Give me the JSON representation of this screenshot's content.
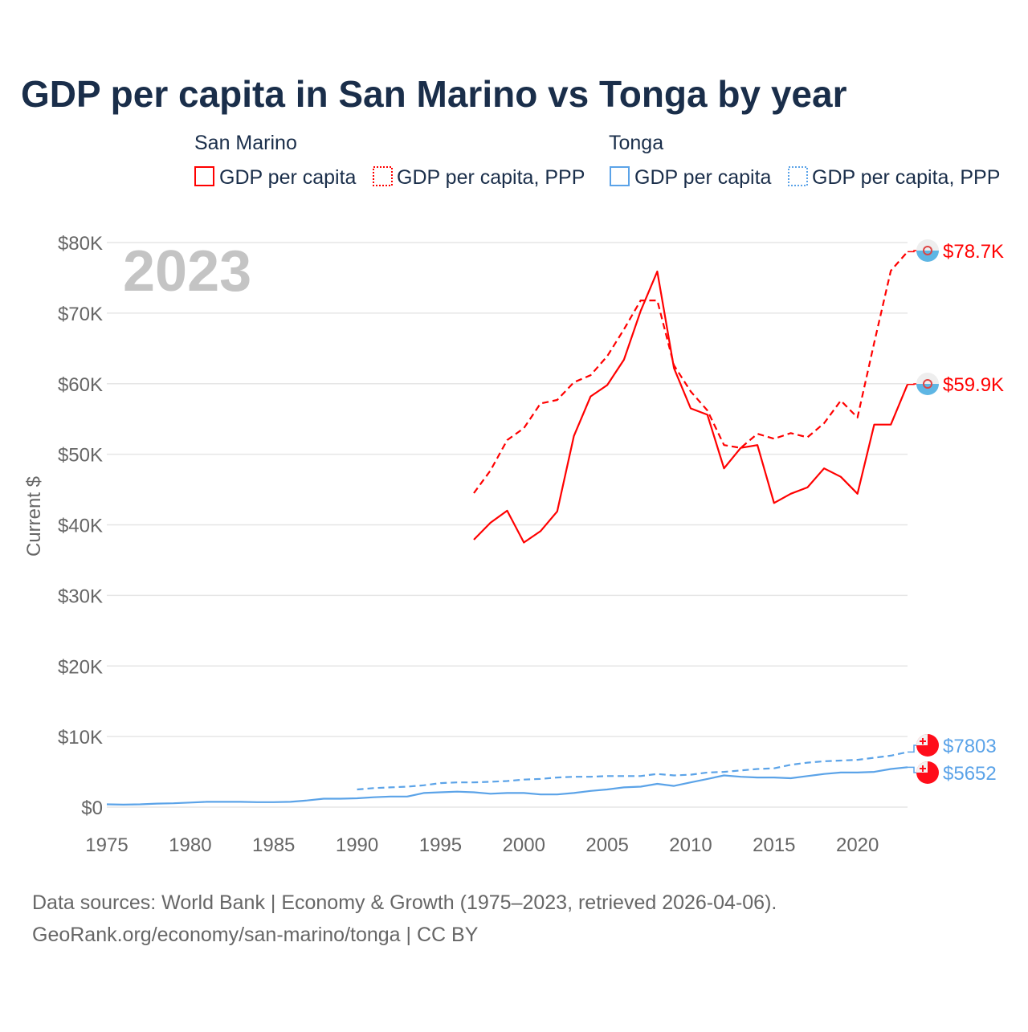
{
  "chart_data": {
    "type": "line",
    "title": "GDP per capita in San Marino vs Tonga by year",
    "year_label": "2023",
    "ylabel": "Current $",
    "xlabel": "",
    "xlim": [
      1975,
      2023
    ],
    "ylim": [
      0,
      80000
    ],
    "x_ticks": [
      1975,
      1980,
      1985,
      1990,
      1995,
      2000,
      2005,
      2010,
      2015,
      2020
    ],
    "x_tick_labels": [
      "1975",
      "1980",
      "1985",
      "1990",
      "1995",
      "2000",
      "2005",
      "2010",
      "2015",
      "2020"
    ],
    "y_ticks": [
      0,
      10000,
      20000,
      30000,
      40000,
      50000,
      60000,
      70000,
      80000
    ],
    "y_tick_labels": [
      "$0",
      "$10K",
      "$20K",
      "$30K",
      "$40K",
      "$50K",
      "$60K",
      "$70K",
      "$80K"
    ],
    "grid": true,
    "legend": {
      "placement": "top",
      "groups": [
        {
          "title": "San Marino",
          "items": [
            "GDP per capita",
            "GDP per capita, PPP"
          ]
        },
        {
          "title": "Tonga",
          "items": [
            "GDP per capita",
            "GDP per capita, PPP"
          ]
        }
      ]
    },
    "series": [
      {
        "name": "San Marino GDP per capita",
        "country": "San Marino",
        "style": "solid",
        "color": "#ff0000",
        "end_label": "$59.9K",
        "start_year": 1997,
        "values": [
          37900,
          40300,
          42000,
          37500,
          39100,
          41900,
          52600,
          58200,
          59800,
          63400,
          70300,
          75900,
          62200,
          56500,
          55600,
          48000,
          50900,
          51300,
          43100,
          44400,
          45300,
          48000,
          46800,
          44400,
          54200,
          54200,
          59900
        ]
      },
      {
        "name": "San Marino GDP per capita, PPP",
        "country": "San Marino",
        "style": "dashed",
        "color": "#ff0000",
        "end_label": "$78.7K",
        "start_year": 1997,
        "values": [
          44500,
          47700,
          52000,
          53700,
          57200,
          57700,
          60200,
          61200,
          63900,
          67700,
          71800,
          71800,
          62600,
          58900,
          56200,
          51300,
          50900,
          52900,
          52200,
          53000,
          52400,
          54400,
          57600,
          55200,
          65800,
          76000,
          78700
        ]
      },
      {
        "name": "Tonga GDP per capita",
        "country": "Tonga",
        "style": "solid",
        "color": "#5ba3e8",
        "end_label": "$5652",
        "start_year": 1975,
        "values": [
          400,
          350,
          400,
          500,
          550,
          650,
          750,
          750,
          750,
          700,
          700,
          750,
          950,
          1200,
          1200,
          1250,
          1400,
          1500,
          1500,
          2000,
          2100,
          2200,
          2100,
          1900,
          2000,
          2000,
          1800,
          1800,
          2000,
          2300,
          2500,
          2800,
          2900,
          3300,
          3000,
          3500,
          4000,
          4500,
          4300,
          4200,
          4200,
          4100,
          4400,
          4700,
          4900,
          4900,
          5000,
          5400,
          5652
        ]
      },
      {
        "name": "Tonga GDP per capita, PPP",
        "country": "Tonga",
        "style": "dashed",
        "color": "#5ba3e8",
        "end_label": "$7803",
        "start_year": 1990,
        "values": [
          2500,
          2700,
          2800,
          2900,
          3100,
          3400,
          3500,
          3500,
          3600,
          3700,
          3900,
          4000,
          4200,
          4300,
          4300,
          4400,
          4400,
          4400,
          4700,
          4500,
          4600,
          4900,
          5000,
          5200,
          5400,
          5500,
          6000,
          6300,
          6500,
          6600,
          6700,
          7000,
          7300,
          7803
        ]
      }
    ]
  },
  "footer": {
    "line1": "Data sources: World Bank | Economy & Growth (1975–2023, retrieved 2026-04-06).",
    "line2": "GeoRank.org/economy/san-marino/tonga | CC BY"
  },
  "colors": {
    "title": "#1a2e4a",
    "san_marino": "#ff0000",
    "tonga": "#5ba3e8",
    "axis_text": "#666666",
    "grid": "#e6e6e6",
    "year": "#c4c4c4"
  }
}
